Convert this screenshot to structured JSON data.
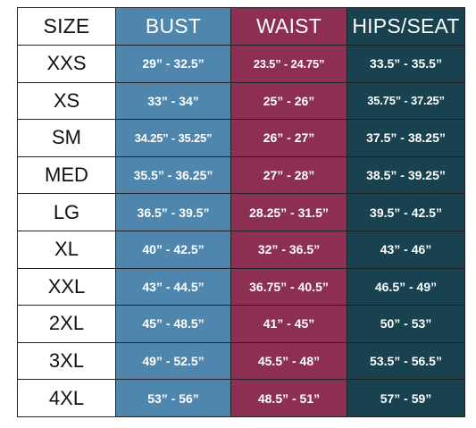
{
  "colors": {
    "bust": "#4f86ad",
    "waist": "#8d2f55",
    "hips": "#18424f"
  },
  "headers": {
    "size": "SIZE",
    "bust": "BUST",
    "waist": "WAIST",
    "hips": "HIPS/SEAT"
  },
  "rows": [
    {
      "size": "XXS",
      "bust": "29” - 32.5”",
      "waist": "23.5” - 24.75”",
      "hips": "33.5” - 35.5”"
    },
    {
      "size": "XS",
      "bust": "33” - 34”",
      "waist": "25” - 26”",
      "hips": "35.75” - 37.25”"
    },
    {
      "size": "SM",
      "bust": "34.25” - 35.25”",
      "waist": "26” - 27”",
      "hips": "37.5” - 38.25”"
    },
    {
      "size": "MED",
      "bust": "35.5” - 36.25”",
      "waist": "27” - 28”",
      "hips": "38.5” - 39.25”"
    },
    {
      "size": "LG",
      "bust": "36.5” - 39.5”",
      "waist": "28.25” - 31.5”",
      "hips": "39.5” - 42.5”"
    },
    {
      "size": "XL",
      "bust": "40” - 42.5”",
      "waist": "32” - 36.5”",
      "hips": "43” - 46”"
    },
    {
      "size": "XXL",
      "bust": "43” - 44.5”",
      "waist": "36.75” - 40.5”",
      "hips": "46.5” - 49”"
    },
    {
      "size": "2XL",
      "bust": "45” - 48.5”",
      "waist": "41” - 45”",
      "hips": "50” - 53”"
    },
    {
      "size": "3XL",
      "bust": "49” - 52.5”",
      "waist": "45.5” - 48”",
      "hips": "53.5” - 56.5”"
    },
    {
      "size": "4XL",
      "bust": "53” - 56”",
      "waist": "48.5” - 51”",
      "hips": "57” - 59”"
    }
  ]
}
